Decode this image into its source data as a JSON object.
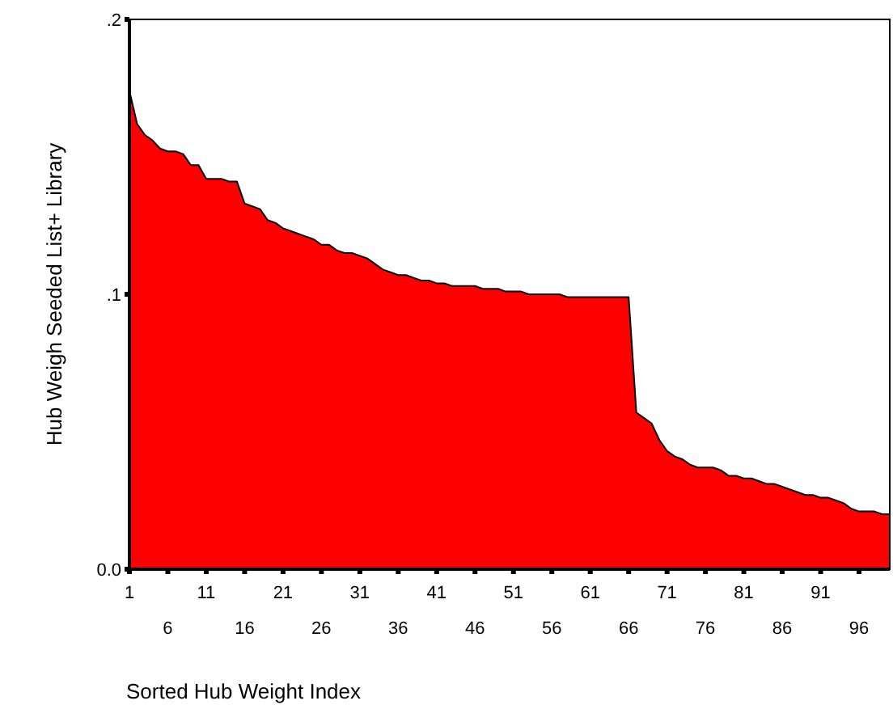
{
  "chart_data": {
    "type": "area",
    "xlabel": "Sorted Hub Weight Index",
    "ylabel": "Hub Weigh Seeded List+ Library",
    "x": [
      1,
      2,
      3,
      4,
      5,
      6,
      7,
      8,
      9,
      10,
      11,
      12,
      13,
      14,
      15,
      16,
      17,
      18,
      19,
      20,
      21,
      22,
      23,
      24,
      25,
      26,
      27,
      28,
      29,
      30,
      31,
      32,
      33,
      34,
      35,
      36,
      37,
      38,
      39,
      40,
      41,
      42,
      43,
      44,
      45,
      46,
      47,
      48,
      49,
      50,
      51,
      52,
      53,
      54,
      55,
      56,
      57,
      58,
      59,
      60,
      61,
      62,
      63,
      64,
      65,
      66,
      67,
      68,
      69,
      70,
      71,
      72,
      73,
      74,
      75,
      76,
      77,
      78,
      79,
      80,
      81,
      82,
      83,
      84,
      85,
      86,
      87,
      88,
      89,
      90,
      91,
      92,
      93,
      94,
      95,
      96,
      97,
      98,
      99,
      100
    ],
    "series": [
      {
        "color": "#ff0000",
        "values": [
          0.174,
          0.162,
          0.158,
          0.156,
          0.153,
          0.152,
          0.152,
          0.151,
          0.147,
          0.147,
          0.142,
          0.142,
          0.142,
          0.141,
          0.141,
          0.133,
          0.132,
          0.131,
          0.127,
          0.126,
          0.124,
          0.123,
          0.122,
          0.121,
          0.12,
          0.118,
          0.118,
          0.116,
          0.115,
          0.115,
          0.114,
          0.113,
          0.111,
          0.109,
          0.108,
          0.107,
          0.107,
          0.106,
          0.105,
          0.105,
          0.104,
          0.104,
          0.103,
          0.103,
          0.103,
          0.103,
          0.102,
          0.102,
          0.102,
          0.101,
          0.101,
          0.101,
          0.1,
          0.1,
          0.1,
          0.1,
          0.1,
          0.099,
          0.099,
          0.099,
          0.099,
          0.099,
          0.099,
          0.099,
          0.099,
          0.099,
          0.057,
          0.055,
          0.053,
          0.047,
          0.043,
          0.041,
          0.04,
          0.038,
          0.037,
          0.037,
          0.037,
          0.036,
          0.034,
          0.034,
          0.033,
          0.033,
          0.032,
          0.031,
          0.031,
          0.03,
          0.029,
          0.028,
          0.027,
          0.027,
          0.026,
          0.026,
          0.025,
          0.024,
          0.022,
          0.021,
          0.021,
          0.021,
          0.02,
          0.02
        ]
      }
    ],
    "xlim": [
      1,
      100
    ],
    "xticks": [
      1,
      11,
      21,
      31,
      41,
      51,
      61,
      71,
      81,
      91
    ],
    "x2lim": [
      1,
      100
    ],
    "x2ticks": [
      6,
      16,
      26,
      36,
      46,
      56,
      66,
      76,
      86,
      96
    ],
    "ylim": [
      0,
      0.2
    ],
    "yticks": [
      {
        "value": 0,
        "label": "0.0"
      },
      {
        "value": 0.1,
        "label": ".1"
      },
      {
        "value": 0.2,
        "label": ".2"
      }
    ],
    "grid": false
  }
}
